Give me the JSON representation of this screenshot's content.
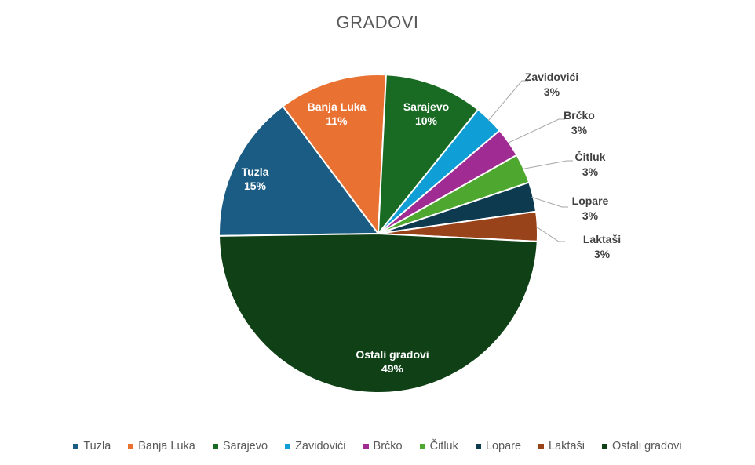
{
  "chart_data": {
    "type": "pie",
    "title": "GRADOVI",
    "categories": [
      "Tuzla",
      "Banja Luka",
      "Sarajevo",
      "Zavidovići",
      "Brčko",
      "Čitluk",
      "Lopare",
      "Laktaši",
      "Ostali gradovi"
    ],
    "values": [
      15,
      11,
      10,
      3,
      3,
      3,
      3,
      3,
      49
    ],
    "labels": [
      "15%",
      "11%",
      "10%",
      "3%",
      "3%",
      "3%",
      "3%",
      "3%",
      "49%"
    ],
    "colors": [
      "#1a5c83",
      "#e97132",
      "#196b24",
      "#0f9ed5",
      "#a02b93",
      "#4ea72e",
      "#0e3a50",
      "#99431b",
      "#0f4016"
    ],
    "legend_position": "bottom"
  }
}
